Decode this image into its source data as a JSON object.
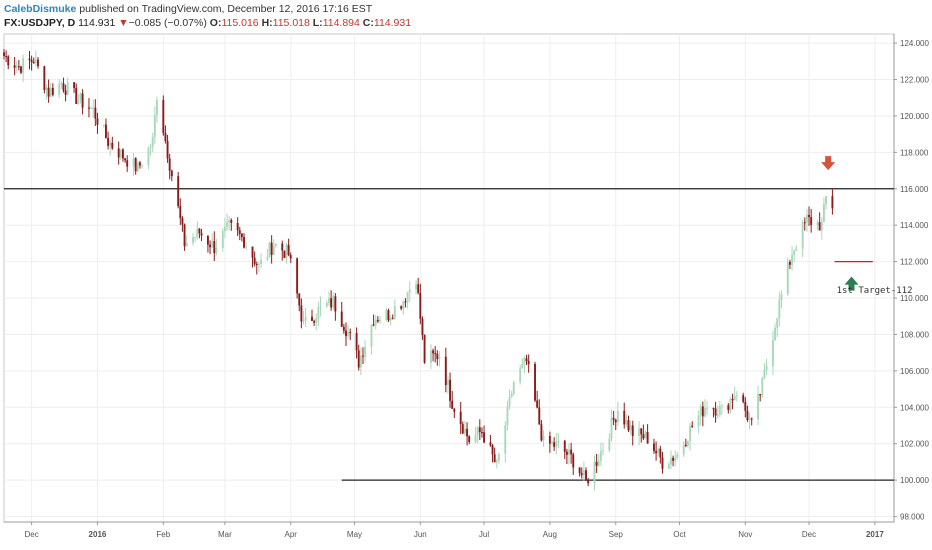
{
  "header": {
    "user": "CalebDismuke",
    "published": "published on TradingView.com, December 12, 2016 17:16 EST",
    "symbol": "FX:USDJPY, D",
    "last": "114.931",
    "change_arrow": "▼",
    "change": "−0.085 (−0.07%)",
    "open_label": "O:",
    "open": "115.016",
    "high_label": "H:",
    "high": "115.018",
    "low_label": "L:",
    "low": "114.894",
    "close_label": "C:",
    "close": "114.931"
  },
  "colors": {
    "up_candle": "#a8d8b9",
    "down_candle": "#8b1a1a",
    "sell_arrow": "#d3543a",
    "buy_arrow": "#2e7d52",
    "target_line": "#cc2222",
    "level_line": "#222222"
  },
  "chart_data": {
    "type": "candlestick",
    "title": "",
    "xlabel": "",
    "ylabel": "",
    "ylim": [
      97.7,
      124.5
    ],
    "xlim": [
      "2015-11-18",
      "2017-01-10"
    ],
    "grid": true,
    "y_ticks": [
      "124.000",
      "122.000",
      "120.000",
      "118.000",
      "116.000",
      "114.000",
      "112.000",
      "110.000",
      "108.000",
      "106.000",
      "104.000",
      "102.000",
      "100.000",
      "98.000"
    ],
    "x_ticks": [
      {
        "label": "Dec",
        "date": "2015-12-01"
      },
      {
        "label": "2016",
        "date": "2016-01-01"
      },
      {
        "label": "Feb",
        "date": "2016-02-01"
      },
      {
        "label": "Mar",
        "date": "2016-03-01"
      },
      {
        "label": "Apr",
        "date": "2016-04-01"
      },
      {
        "label": "May",
        "date": "2016-05-01"
      },
      {
        "label": "Jun",
        "date": "2016-06-01"
      },
      {
        "label": "Jul",
        "date": "2016-07-01"
      },
      {
        "label": "Aug",
        "date": "2016-08-01"
      },
      {
        "label": "Sep",
        "date": "2016-09-01"
      },
      {
        "label": "Oct",
        "date": "2016-10-01"
      },
      {
        "label": "Nov",
        "date": "2016-11-01"
      },
      {
        "label": "Dec",
        "date": "2016-12-01"
      },
      {
        "label": "2017",
        "date": "2017-01-01"
      }
    ],
    "close_path": [
      [
        "2015-11-18",
        123.3
      ],
      [
        "2015-11-25",
        122.7
      ],
      [
        "2015-12-02",
        123.1
      ],
      [
        "2015-12-09",
        121.3
      ],
      [
        "2015-12-15",
        121.8
      ],
      [
        "2015-12-22",
        121.0
      ],
      [
        "2015-12-30",
        120.3
      ],
      [
        "2016-01-06",
        118.6
      ],
      [
        "2016-01-13",
        117.8
      ],
      [
        "2016-01-20",
        117.1
      ],
      [
        "2016-01-27",
        118.6
      ],
      [
        "2016-01-29",
        121.2
      ],
      [
        "2016-02-04",
        117.4
      ],
      [
        "2016-02-11",
        113.0
      ],
      [
        "2016-02-18",
        113.6
      ],
      [
        "2016-02-25",
        112.8
      ],
      [
        "2016-03-03",
        113.9
      ],
      [
        "2016-03-10",
        113.2
      ],
      [
        "2016-03-17",
        111.7
      ],
      [
        "2016-03-24",
        113.0
      ],
      [
        "2016-03-31",
        112.4
      ],
      [
        "2016-04-07",
        108.5
      ],
      [
        "2016-04-14",
        109.3
      ],
      [
        "2016-04-21",
        109.8
      ],
      [
        "2016-04-28",
        108.1
      ],
      [
        "2016-05-03",
        106.5
      ],
      [
        "2016-05-10",
        108.9
      ],
      [
        "2016-05-17",
        109.1
      ],
      [
        "2016-05-24",
        109.9
      ],
      [
        "2016-05-30",
        111.2
      ],
      [
        "2016-06-03",
        106.6
      ],
      [
        "2016-06-10",
        106.9
      ],
      [
        "2016-06-16",
        104.3
      ],
      [
        "2016-06-24",
        102.2
      ],
      [
        "2016-06-30",
        102.7
      ],
      [
        "2016-07-07",
        100.7
      ],
      [
        "2016-07-15",
        105.4
      ],
      [
        "2016-07-21",
        106.5
      ],
      [
        "2016-07-29",
        102.0
      ],
      [
        "2016-08-05",
        101.9
      ],
      [
        "2016-08-12",
        101.1
      ],
      [
        "2016-08-18",
        99.9
      ],
      [
        "2016-08-26",
        101.8
      ],
      [
        "2016-09-02",
        103.9
      ],
      [
        "2016-09-09",
        102.6
      ],
      [
        "2016-09-16",
        102.3
      ],
      [
        "2016-09-23",
        101.0
      ],
      [
        "2016-09-30",
        101.4
      ],
      [
        "2016-10-07",
        103.0
      ],
      [
        "2016-10-14",
        104.2
      ],
      [
        "2016-10-21",
        103.8
      ],
      [
        "2016-10-28",
        104.9
      ],
      [
        "2016-11-04",
        103.0
      ],
      [
        "2016-11-09",
        105.2
      ],
      [
        "2016-11-16",
        109.2
      ],
      [
        "2016-11-23",
        112.5
      ],
      [
        "2016-11-30",
        114.3
      ],
      [
        "2016-12-07",
        114.0
      ],
      [
        "2016-12-09",
        115.5
      ],
      [
        "2016-12-12",
        114.93
      ]
    ],
    "horizontal_lines": [
      {
        "price": 116.0,
        "from": "2015-11-18",
        "to": "2017-01-10",
        "color": "#222222"
      },
      {
        "price": 100.0,
        "from": "2016-04-25",
        "to": "2017-01-10",
        "color": "#222222"
      },
      {
        "price": 112.0,
        "from": "2016-12-13",
        "to": "2016-12-31",
        "color": "#cc2222"
      }
    ],
    "annotations": [
      {
        "type": "down-arrow",
        "date": "2016-12-10",
        "price": 117.3,
        "color": "#d3543a"
      },
      {
        "type": "up-arrow",
        "date": "2016-12-21",
        "price": 110.9,
        "color": "#2e7d52"
      },
      {
        "type": "text",
        "date": "2016-12-14",
        "price": 110.5,
        "text": "1st Target-112"
      }
    ]
  }
}
